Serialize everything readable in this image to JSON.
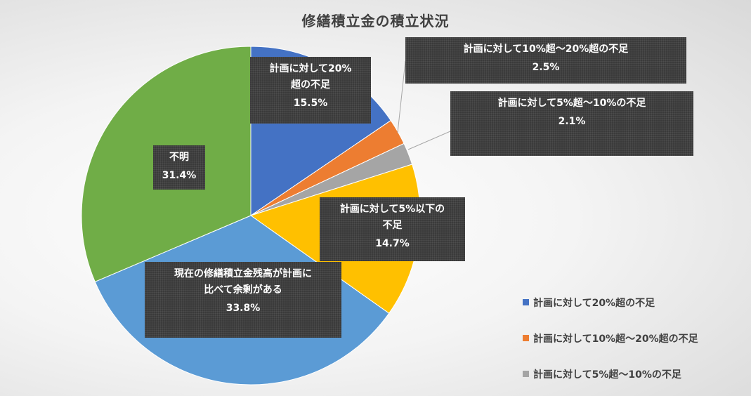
{
  "chart_data": {
    "type": "pie",
    "title": "修繕積立金の積立状況",
    "slices": [
      {
        "name": "計画に対して20%超の不足",
        "label": "計画に対して20%\n超の不足",
        "value": 15.5,
        "value_label": "15.5%",
        "color": "#4472C4"
      },
      {
        "name": "計画に対して10%超〜20%超の不足",
        "label": "計画に対して10%超〜20%超の不足",
        "value": 2.5,
        "value_label": "2.5%",
        "color": "#ED7D31"
      },
      {
        "name": "計画に対して5%超〜10%の不足",
        "label": "計画に対して5%超〜10%の不足",
        "value": 2.1,
        "value_label": "2.1%",
        "color": "#A5A5A5"
      },
      {
        "name": "計画に対して5%以下の不足",
        "label": "計画に対して5%以下の\n不足",
        "value": 14.7,
        "value_label": "14.7%",
        "color": "#FFC000"
      },
      {
        "name": "現在の修繕積立金残高が計画に比べて余剰がある",
        "label": "現在の修繕積立金残高が計画に\n比べて余剰がある",
        "value": 33.8,
        "value_label": "33.8%",
        "color": "#5B9BD5"
      },
      {
        "name": "不明",
        "label": "不明",
        "value": 31.4,
        "value_label": "31.4%",
        "color": "#70AD47"
      }
    ],
    "legend": {
      "position": "bottom-right",
      "entries": [
        "計画に対して20%超の不足",
        "計画に対して10%超〜20%超の不足",
        "計画に対して5%超〜10%の不足"
      ]
    }
  }
}
